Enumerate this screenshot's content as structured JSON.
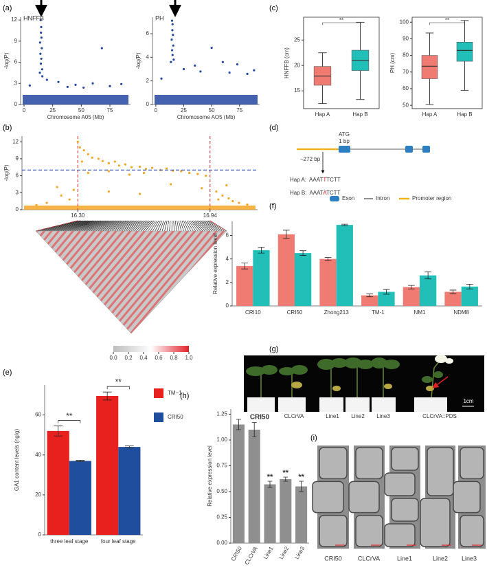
{
  "panels": {
    "a": "(a)",
    "b": "(b)",
    "c": "(c)",
    "d": "(d)",
    "e": "(e)",
    "f": "(f)",
    "g": "(g)",
    "h": "(h)",
    "i": "(i)"
  },
  "chart_data": [
    {
      "type": "scatter",
      "label": "HNFFB",
      "xlabel": "Chromosome A05 (Mb)",
      "ylabel": "-log(P)",
      "color": "#2347a1",
      "x": [
        14.5,
        15,
        14.8,
        15.2,
        14,
        15.5,
        14.3,
        15.1,
        14.7,
        15.8,
        13.8,
        16,
        68,
        20,
        30,
        45,
        60,
        75,
        85,
        5,
        38,
        52
      ],
      "values": [
        12,
        11,
        10.2,
        9.5,
        8.8,
        8,
        7.2,
        6.5,
        5.8,
        5,
        4.5,
        4,
        8,
        3.5,
        3.2,
        2.8,
        3,
        2.6,
        2.9,
        2.7,
        2.5,
        2.4
      ],
      "xlim": [
        -3,
        93
      ],
      "xticks": [
        0,
        25,
        50,
        75
      ],
      "ylim": [
        0,
        12.4
      ],
      "yticks": [
        0,
        3,
        6,
        9,
        12
      ]
    },
    {
      "type": "scatter",
      "label": "PH",
      "xlabel": "Chromosome AO5 (Mb)",
      "ylabel": "-log(P)",
      "color": "#2347a1",
      "x": [
        14.5,
        15,
        14.8,
        15.3,
        14.2,
        15.6,
        14.6,
        15,
        16,
        13.5,
        50,
        60,
        73,
        25,
        40,
        35,
        82,
        88,
        5,
        66
      ],
      "values": [
        7.1,
        6.8,
        6.3,
        5.9,
        5.5,
        5,
        4.6,
        4.2,
        3.8,
        3.6,
        4.8,
        3.6,
        3.4,
        3,
        2.8,
        3.3,
        2.6,
        2.9,
        2.2,
        2.7
      ],
      "xlim": [
        -3,
        93
      ],
      "xticks": [
        0,
        25,
        50,
        75
      ],
      "ylim": [
        0,
        7.4
      ],
      "yticks": [
        0,
        2,
        4,
        6
      ]
    },
    {
      "type": "box",
      "ylabel": "HNFFB (cm)",
      "categories": [
        "Hap A",
        "Hap B"
      ],
      "colors": [
        "#ef7b72",
        "#22bfb9"
      ],
      "boxes": [
        {
          "min": 12.5,
          "q1": 16.1,
          "median": 17.9,
          "q3": 19.8,
          "max": 22.5
        },
        {
          "min": 13.3,
          "q1": 19,
          "median": 21,
          "q3": 23,
          "max": 28.5
        }
      ],
      "annotation": "**",
      "ylim": [
        11.5,
        29.5
      ],
      "yticks": [
        15,
        20,
        25
      ]
    },
    {
      "type": "box",
      "ylabel": "PH (cm)",
      "categories": [
        "Hap A",
        "Hap B"
      ],
      "colors": [
        "#ef7b72",
        "#22bfb9"
      ],
      "boxes": [
        {
          "min": 50.5,
          "q1": 66,
          "median": 73.5,
          "q3": 80,
          "max": 93.5
        },
        {
          "min": 59,
          "q1": 76.5,
          "median": 83,
          "q3": 88,
          "max": 101
        }
      ],
      "annotation": "**",
      "ylim": [
        48,
        103
      ],
      "yticks": [
        50,
        60,
        70,
        80,
        90,
        100
      ]
    },
    {
      "type": "scatter",
      "ylabel": "-log(P)",
      "color": "#f5a623",
      "threshold": 7,
      "threshold_color": "#3a55b4",
      "x": [
        16.3,
        16.31,
        16.33,
        16.35,
        16.37,
        16.32,
        16.4,
        16.42,
        16.45,
        16.48,
        16.5,
        16.53,
        16.56,
        16.6,
        16.63,
        16.66,
        16.7,
        16.73,
        16.76,
        16.8,
        16.84,
        16.88,
        16.92,
        16.35,
        16.45,
        16.55,
        16.62,
        16.2,
        16.22,
        16.26,
        16.15,
        16.1,
        16.28,
        16.97,
        17,
        17.03,
        17.05,
        17.08,
        17.02,
        16.98,
        17.12,
        16.45,
        16.6,
        16.75,
        16.9
      ],
      "values": [
        12,
        11,
        10.5,
        9.8,
        9.2,
        8.5,
        9,
        8.6,
        8.2,
        8.5,
        7.8,
        8,
        7.5,
        7.6,
        7.2,
        7.4,
        7,
        7.3,
        6.9,
        6.8,
        6.5,
        6.3,
        6,
        6.5,
        6.8,
        6.2,
        6.5,
        4,
        2.5,
        1.8,
        1.2,
        0.8,
        3.5,
        3.2,
        2.5,
        2,
        1.5,
        1.2,
        4.3,
        1.8,
        0.9,
        3.2,
        2.8,
        4.5,
        3.8
      ],
      "xlim": [
        16.03,
        17.17
      ],
      "xticks": [
        {
          "value": 16.3,
          "label": "16.30"
        },
        {
          "value": 16.94,
          "label": "16.94"
        }
      ],
      "ylim": [
        0,
        13
      ],
      "yticks": [
        0,
        3,
        6,
        9,
        12
      ],
      "colorbar": {
        "colors": [
          "#bdbdbd",
          "#ffffff",
          "#e3222b"
        ],
        "clim": [
          0,
          1
        ],
        "ticks": [
          {
            "value": 0,
            "label": "0.0"
          },
          {
            "value": 0.2,
            "label": "0.2"
          },
          {
            "value": 0.4,
            "label": "0.4"
          },
          {
            "value": 0.6,
            "label": "0.6"
          },
          {
            "value": 0.8,
            "label": "0.8"
          },
          {
            "value": 1,
            "label": "1.0"
          }
        ]
      }
    },
    {
      "type": "bar",
      "ylabel": "Relative expression level",
      "categories": [
        "CRI10",
        "CRI50",
        "Zhong213",
        "TM-1",
        "NM1",
        "NDM8"
      ],
      "series": [
        {
          "color": "#ef7b72",
          "values": [
            3.4,
            6.1,
            4.0,
            0.9,
            1.6,
            1.2
          ],
          "errors": [
            0.25,
            0.35,
            0.12,
            0.12,
            0.15,
            0.15
          ]
        },
        {
          "color": "#22bfb9",
          "values": [
            4.75,
            4.5,
            6.9,
            1.2,
            2.6,
            1.65
          ],
          "errors": [
            0.25,
            0.2,
            0.06,
            0.2,
            0.3,
            0.2
          ]
        }
      ],
      "ylim": [
        0,
        7.2
      ],
      "yticks": [
        0,
        2,
        4,
        6
      ]
    },
    {
      "type": "bar",
      "ylabel": "GA1 content levels (ng/g)",
      "categories": [
        "three leaf stage",
        "four leaf stage"
      ],
      "legend": "right",
      "series": [
        {
          "name": "TM−1",
          "color": "#e8211f",
          "values": [
            52,
            69.5
          ],
          "errors": [
            2.5,
            2.0
          ]
        },
        {
          "name": "CRI50",
          "color": "#1f4e9e",
          "values": [
            37,
            44
          ],
          "errors": [
            0.3,
            0.5
          ]
        }
      ],
      "annotations": [
        "**",
        "**"
      ],
      "ylim": [
        0,
        75
      ],
      "yticks": [
        0,
        20,
        40,
        60
      ]
    },
    {
      "type": "bar",
      "ylabel": "Relative expression level",
      "categories": [
        "CRI50",
        "CLCrVA",
        "Line1",
        "Line2",
        "Line3"
      ],
      "series": [
        {
          "color": "#8f8f8f",
          "values": [
            1.15,
            1.1,
            0.57,
            0.62,
            0.55
          ],
          "errors": [
            0.05,
            0.07,
            0.03,
            0.02,
            0.05
          ]
        }
      ],
      "annotations": [
        null,
        null,
        "**",
        "**",
        "**"
      ],
      "ylim": [
        0,
        1.3
      ],
      "yticks": [
        {
          "value": 0,
          "label": "0.00"
        },
        {
          "value": 0.25,
          "label": "0.25"
        },
        {
          "value": 0.5,
          "label": "0.50"
        },
        {
          "value": 0.75,
          "label": "0.75"
        },
        {
          "value": 1,
          "label": "1.00"
        },
        {
          "value": 1.25,
          "label": "1.25"
        }
      ]
    }
  ],
  "gene_diagram": {
    "atg": "ATG",
    "atg_pos": "1 bp",
    "snp_pos": "−272 bp",
    "haplotypes": [
      {
        "label": "Hap A:",
        "before": "AAAT",
        "snp": "T",
        "after": "TCTT"
      },
      {
        "label": "Hap B:",
        "before": "AAAT",
        "snp": "A",
        "after": "TCTT"
      }
    ],
    "legend": [
      "Exon",
      "Intron",
      "Promoter region"
    ]
  },
  "photo": {
    "labels": [
      "CRI50",
      "CLCrVA",
      "Line1",
      "Line2",
      "Line3",
      "CLCrVA::PDS"
    ],
    "scale": "1cm"
  },
  "micrographs": {
    "labels": [
      "CRI50",
      "CLCrVA",
      "Line1",
      "Line2",
      "Line3"
    ]
  }
}
